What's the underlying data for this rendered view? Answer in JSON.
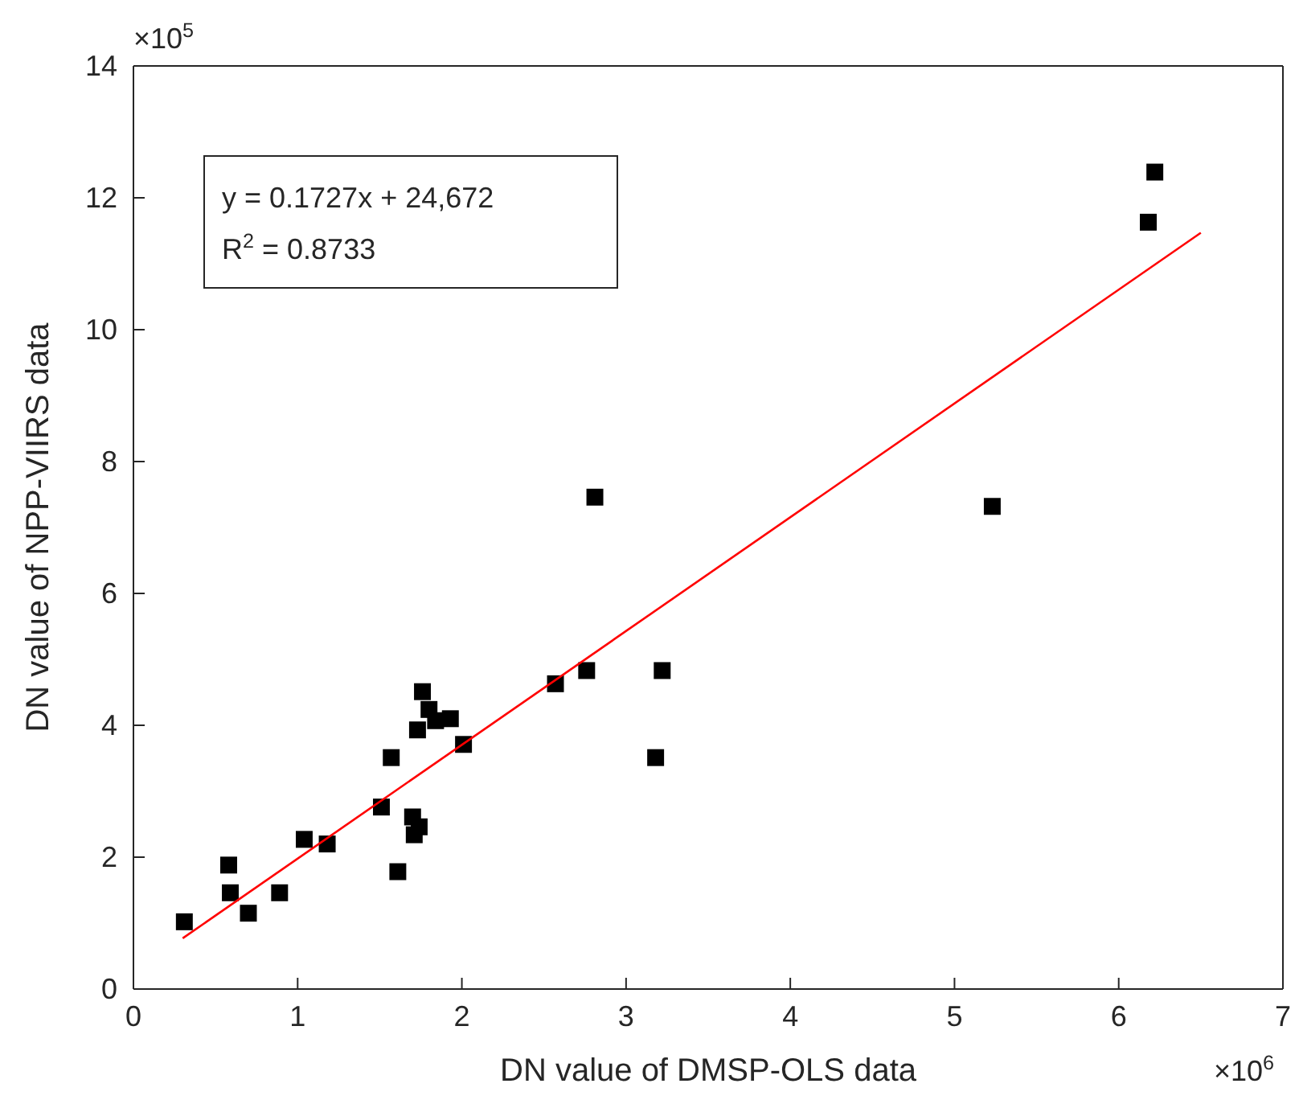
{
  "chart_data": {
    "type": "scatter",
    "xlabel": "DN value of DMSP-OLS data",
    "ylabel": "DN value of NPP-VIIRS data",
    "xlim": [
      0,
      7
    ],
    "ylim": [
      0,
      14
    ],
    "xticks": [
      0,
      1,
      2,
      3,
      4,
      5,
      6,
      7
    ],
    "yticks": [
      0,
      2,
      4,
      6,
      8,
      10,
      12,
      14
    ],
    "grid": false,
    "series": [
      {
        "color": "#000000",
        "marker": "square",
        "x": [
          0.31,
          0.58,
          0.59,
          0.7,
          0.89,
          1.04,
          1.18,
          1.51,
          1.57,
          1.61,
          1.7,
          1.71,
          1.74,
          1.73,
          1.76,
          1.8,
          1.84,
          1.93,
          2.01,
          2.57,
          2.76,
          2.81,
          3.18,
          3.22,
          5.23,
          6.18,
          6.22
        ],
        "values": [
          1.02,
          1.88,
          1.46,
          1.15,
          1.46,
          2.27,
          2.2,
          2.76,
          3.51,
          1.78,
          2.61,
          2.34,
          2.46,
          3.93,
          4.51,
          4.24,
          4.07,
          4.1,
          3.71,
          4.63,
          4.83,
          7.46,
          3.51,
          4.83,
          7.32,
          11.63,
          12.39
        ]
      },
      {
        "type": "line",
        "color": "#ff0000",
        "x": [
          0.3,
          6.5
        ],
        "values": [
          0.77,
          11.47
        ]
      }
    ],
    "annotations": [
      "×10$^{5}$",
      "×10$^{6}$",
      "y = 0.1727x + 24,672",
      "R$^{2}$ = 0.8733"
    ]
  }
}
